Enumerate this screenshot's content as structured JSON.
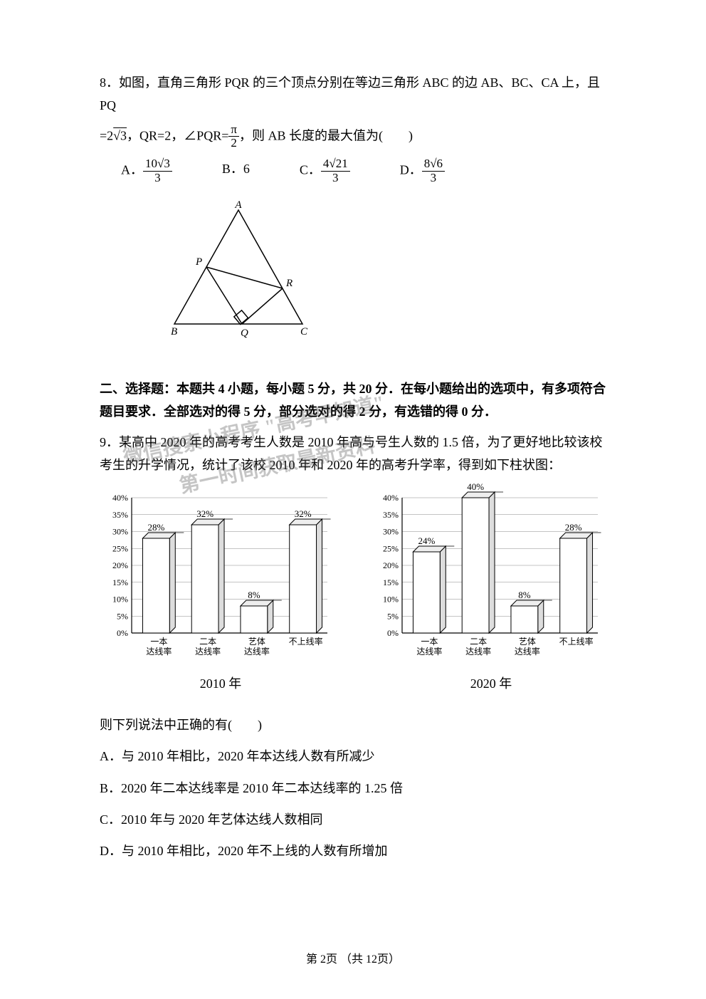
{
  "q8": {
    "text_line1": "8．如图，直角三角形 PQR 的三个顶点分别在等边三角形 ABC 的边 AB、BC、CA 上，且 PQ",
    "text_line2_pre": "=2",
    "text_line2_sqrt": "3",
    "text_line2_mid": "，QR=2，∠PQR=",
    "text_line2_frac_num": "π",
    "text_line2_frac_den": "2",
    "text_line2_post": "，则 AB 长度的最大值为(　　)",
    "options": {
      "A": {
        "label": "A．",
        "num": "10√3",
        "den": "3"
      },
      "B": {
        "label": "B．",
        "val": "6"
      },
      "C": {
        "label": "C．",
        "num": "4√21",
        "den": "3"
      },
      "D": {
        "label": "D．",
        "num": "8√6",
        "den": "3"
      }
    },
    "figure": {
      "labels": {
        "A": "A",
        "B": "B",
        "C": "C",
        "P": "P",
        "Q": "Q",
        "R": "R"
      },
      "stroke": "#000000"
    }
  },
  "section2": {
    "heading": "二、选择题：本题共 4 小题，每小题 5 分，共 20 分．在每小题给出的选项中，有多项符合题目要求．全部选对的得 5 分，部分选对的得 2 分，有选错的得 0 分．"
  },
  "q9": {
    "text": "9．某高中 2020 年的高考考生人数是 2010 年高与号生人数的 1.5 倍，为了更好地比较该校考生的升学情况，统计了该校 2010 年和 2020 年的高考升学率，得到如下柱状图：",
    "chart2010": {
      "type": "bar",
      "categories": [
        "一本\n达线率",
        "二本\n达线率",
        "艺体\n达线率",
        "不上线率"
      ],
      "values": [
        28,
        32,
        8,
        32
      ],
      "value_labels": [
        "28%",
        "32%",
        "8%",
        "32%"
      ],
      "ylim": [
        0,
        40
      ],
      "ytick_step": 5,
      "ytick_labels": [
        "0%",
        "5%",
        "10%",
        "15%",
        "20%",
        "25%",
        "30%",
        "35%",
        "40%"
      ],
      "bar_fill": "#ffffff",
      "bar_stroke": "#000000",
      "grid_color": "#888888",
      "caption": "2010 年"
    },
    "chart2020": {
      "type": "bar",
      "categories": [
        "一本\n达线率",
        "二本\n达线率",
        "艺体\n达线率",
        "不上线率"
      ],
      "values": [
        24,
        40,
        8,
        28
      ],
      "value_labels": [
        "24%",
        "40%",
        "8%",
        "28%"
      ],
      "ylim": [
        0,
        40
      ],
      "ytick_step": 5,
      "ytick_labels": [
        "0%",
        "5%",
        "10%",
        "15%",
        "20%",
        "25%",
        "30%",
        "35%",
        "40%"
      ],
      "bar_fill": "#ffffff",
      "bar_stroke": "#000000",
      "grid_color": "#888888",
      "caption": "2020 年"
    },
    "post_text": "则下列说法中正确的有(　　)",
    "options": {
      "A": "A．与 2010 年相比，2020 年本达线人数有所减少",
      "B": "B．2020 年二本达线率是 2010 年二本达线率的 1.25 倍",
      "C": "C．2010 年与 2020 年艺体达线人数相同",
      "D": "D．与 2010 年相比，2020 年不上线的人数有所增加"
    }
  },
  "watermark": {
    "line1": "微信搜索小程序 \"高考早知道\"",
    "line2": "第一时间获取最新资料"
  },
  "footer": "第 2页 （共 12页）",
  "colors": {
    "text": "#000000",
    "background": "#ffffff",
    "watermark": "rgba(90,90,90,0.35)"
  }
}
